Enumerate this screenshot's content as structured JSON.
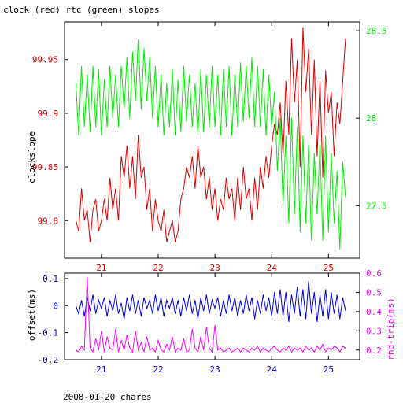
{
  "title": "clock (red) rtc (green) slopes",
  "footer": "2008-01-20 chares",
  "colors": {
    "clock": "#dd0000",
    "rtc": "#00ee00",
    "offset": "#0000dd",
    "rndtrip": "#ff00ff",
    "axis": "#000000"
  },
  "chart_data": [
    {
      "type": "line",
      "title": "clock (red) rtc (green) slopes",
      "ylabel": "clockslope",
      "y2label": "",
      "xlim": [
        20.35,
        25.55
      ],
      "ylim": [
        99.765,
        99.985
      ],
      "y2lim": [
        27.2,
        28.55
      ],
      "x_ticks": [
        "21",
        "22",
        "23",
        "24",
        "25"
      ],
      "y_ticks": [
        "99.8",
        "99.85",
        "99.9",
        "99.95"
      ],
      "y2_ticks": [
        "27.5",
        "28",
        "28.5"
      ],
      "series": [
        {
          "axis": "left",
          "color": "#dd0000",
          "x": [
            20.55,
            20.6,
            20.65,
            20.7,
            20.75,
            20.8,
            20.85,
            20.9,
            20.95,
            21.0,
            21.05,
            21.1,
            21.15,
            21.2,
            21.25,
            21.3,
            21.35,
            21.4,
            21.45,
            21.5,
            21.55,
            21.6,
            21.65,
            21.7,
            21.75,
            21.8,
            21.85,
            21.9,
            21.95,
            22.0,
            22.05,
            22.1,
            22.15,
            22.2,
            22.25,
            22.3,
            22.35,
            22.4,
            22.45,
            22.5,
            22.55,
            22.6,
            22.65,
            22.7,
            22.75,
            22.8,
            22.85,
            22.9,
            22.95,
            23.0,
            23.05,
            23.1,
            23.15,
            23.2,
            23.25,
            23.3,
            23.35,
            23.4,
            23.45,
            23.5,
            23.55,
            23.6,
            23.65,
            23.7,
            23.75,
            23.8,
            23.85,
            23.9,
            23.95,
            24.0,
            24.05,
            24.1,
            24.15,
            24.2,
            24.25,
            24.3,
            24.35,
            24.4,
            24.45,
            24.5,
            24.55,
            24.6,
            24.65,
            24.7,
            24.75,
            24.8,
            24.85,
            24.9,
            24.95,
            25.0,
            25.05,
            25.1,
            25.15,
            25.2,
            25.25,
            25.3
          ],
          "y": [
            99.8,
            99.79,
            99.83,
            99.8,
            99.81,
            99.78,
            99.81,
            99.82,
            99.79,
            99.8,
            99.82,
            99.8,
            99.84,
            99.81,
            99.83,
            99.8,
            99.86,
            99.84,
            99.87,
            99.83,
            99.86,
            99.82,
            99.88,
            99.84,
            99.85,
            99.81,
            99.83,
            99.79,
            99.82,
            99.8,
            99.79,
            99.81,
            99.78,
            99.79,
            99.8,
            99.78,
            99.79,
            99.82,
            99.83,
            99.85,
            99.84,
            99.86,
            99.83,
            99.87,
            99.84,
            99.85,
            99.82,
            99.84,
            99.81,
            99.83,
            99.8,
            99.82,
            99.81,
            99.84,
            99.82,
            99.83,
            99.8,
            99.84,
            99.81,
            99.85,
            99.82,
            99.83,
            99.8,
            99.84,
            99.81,
            99.85,
            99.83,
            99.86,
            99.84,
            99.87,
            99.89,
            99.88,
            99.91,
            99.86,
            99.93,
            99.88,
            99.97,
            99.91,
            99.95,
            99.85,
            99.98,
            99.92,
            99.96,
            99.88,
            99.95,
            99.86,
            99.93,
            99.84,
            99.94,
            99.9,
            99.92,
            99.86,
            99.91,
            99.89,
            99.93,
            99.97
          ]
        },
        {
          "axis": "right",
          "color": "#00ee00",
          "x": [
            20.55,
            20.6,
            20.65,
            20.7,
            20.75,
            20.8,
            20.85,
            20.9,
            20.95,
            21.0,
            21.05,
            21.1,
            21.15,
            21.2,
            21.25,
            21.3,
            21.35,
            21.4,
            21.45,
            21.5,
            21.55,
            21.6,
            21.65,
            21.7,
            21.75,
            21.8,
            21.85,
            21.9,
            21.95,
            22.0,
            22.05,
            22.1,
            22.15,
            22.2,
            22.25,
            22.3,
            22.35,
            22.4,
            22.45,
            22.5,
            22.55,
            22.6,
            22.65,
            22.7,
            22.75,
            22.8,
            22.85,
            22.9,
            22.95,
            23.0,
            23.05,
            23.1,
            23.15,
            23.2,
            23.25,
            23.3,
            23.35,
            23.4,
            23.45,
            23.5,
            23.55,
            23.6,
            23.65,
            23.7,
            23.75,
            23.8,
            23.85,
            23.9,
            23.95,
            24.0,
            24.05,
            24.1,
            24.15,
            24.2,
            24.25,
            24.3,
            24.35,
            24.4,
            24.45,
            24.5,
            24.55,
            24.6,
            24.65,
            24.7,
            24.75,
            24.8,
            24.85,
            24.9,
            24.95,
            25.0,
            25.05,
            25.1,
            25.15,
            25.2,
            25.25,
            25.3
          ],
          "y": [
            28.2,
            27.9,
            28.3,
            27.95,
            28.25,
            27.92,
            28.3,
            27.95,
            28.28,
            27.9,
            28.22,
            27.95,
            28.3,
            28.0,
            28.25,
            27.95,
            28.3,
            28.05,
            28.35,
            28.0,
            28.38,
            28.1,
            28.45,
            28.05,
            28.4,
            28.1,
            28.35,
            28.0,
            28.3,
            27.95,
            28.25,
            27.9,
            28.2,
            27.95,
            28.28,
            27.9,
            28.22,
            27.92,
            28.3,
            27.98,
            28.25,
            27.95,
            28.2,
            27.9,
            28.28,
            27.92,
            28.25,
            27.95,
            28.3,
            27.95,
            28.25,
            27.9,
            28.28,
            27.95,
            28.3,
            27.9,
            28.25,
            27.95,
            28.32,
            27.98,
            28.3,
            28.0,
            28.35,
            27.95,
            28.3,
            27.95,
            28.28,
            27.9,
            28.25,
            27.95,
            28.15,
            27.7,
            28.0,
            27.5,
            27.9,
            27.4,
            28.0,
            27.45,
            27.95,
            27.35,
            27.9,
            27.4,
            27.85,
            27.3,
            27.8,
            27.45,
            27.85,
            27.3,
            27.9,
            27.35,
            27.8,
            27.4,
            27.7,
            27.25,
            27.75,
            27.55
          ]
        }
      ]
    },
    {
      "type": "line",
      "ylabel": "offset(ms)",
      "y2label": "rnd-trip(ms)",
      "xlim": [
        20.35,
        25.55
      ],
      "ylim": [
        -0.2,
        0.12
      ],
      "y2lim": [
        0.15,
        0.6
      ],
      "x_ticks": [
        "21",
        "22",
        "23",
        "24",
        "25"
      ],
      "y_ticks": [
        "-0.2",
        "-0.1",
        "0",
        "0.1"
      ],
      "y2_ticks": [
        "0.2",
        "0.3",
        "0.4",
        "0.5",
        "0.6"
      ],
      "series": [
        {
          "axis": "left",
          "color": "#0000dd",
          "x": [
            20.55,
            20.6,
            20.65,
            20.7,
            20.75,
            20.8,
            20.85,
            20.9,
            20.95,
            21.0,
            21.05,
            21.1,
            21.15,
            21.2,
            21.25,
            21.3,
            21.35,
            21.4,
            21.45,
            21.5,
            21.55,
            21.6,
            21.65,
            21.7,
            21.75,
            21.8,
            21.85,
            21.9,
            21.95,
            22.0,
            22.05,
            22.1,
            22.15,
            22.2,
            22.25,
            22.3,
            22.35,
            22.4,
            22.45,
            22.5,
            22.55,
            22.6,
            22.65,
            22.7,
            22.75,
            22.8,
            22.85,
            22.9,
            22.95,
            23.0,
            23.05,
            23.1,
            23.15,
            23.2,
            23.25,
            23.3,
            23.35,
            23.4,
            23.45,
            23.5,
            23.55,
            23.6,
            23.65,
            23.7,
            23.75,
            23.8,
            23.85,
            23.9,
            23.95,
            24.0,
            24.05,
            24.1,
            24.15,
            24.2,
            24.25,
            24.3,
            24.35,
            24.4,
            24.45,
            24.5,
            24.55,
            24.6,
            24.65,
            24.7,
            24.75,
            24.8,
            24.85,
            24.9,
            24.95,
            25.0,
            25.05,
            25.1,
            25.15,
            25.2,
            25.25,
            25.3
          ],
          "y": [
            0.0,
            -0.03,
            0.02,
            -0.04,
            0.03,
            -0.02,
            0.04,
            -0.03,
            0.02,
            -0.01,
            0.03,
            -0.04,
            0.02,
            -0.02,
            0.04,
            -0.03,
            0.01,
            -0.05,
            0.03,
            -0.02,
            0.04,
            -0.03,
            0.02,
            -0.04,
            0.03,
            -0.01,
            0.02,
            -0.03,
            0.04,
            -0.02,
            0.03,
            -0.04,
            0.02,
            -0.01,
            0.03,
            -0.03,
            0.02,
            -0.04,
            0.03,
            -0.02,
            0.04,
            -0.03,
            0.02,
            -0.05,
            0.03,
            -0.02,
            0.04,
            -0.03,
            0.02,
            -0.01,
            0.03,
            -0.04,
            0.02,
            -0.03,
            0.04,
            -0.02,
            0.03,
            -0.04,
            0.02,
            -0.03,
            0.04,
            -0.02,
            0.03,
            -0.05,
            0.02,
            -0.03,
            0.04,
            -0.02,
            0.03,
            -0.04,
            0.05,
            -0.03,
            0.06,
            -0.04,
            0.05,
            -0.06,
            0.04,
            -0.03,
            0.07,
            -0.04,
            0.06,
            -0.05,
            0.09,
            -0.03,
            0.05,
            -0.06,
            0.04,
            -0.04,
            0.06,
            -0.05,
            0.05,
            -0.03,
            0.04,
            -0.05,
            0.03,
            -0.02
          ]
        },
        {
          "axis": "right",
          "color": "#ff00ff",
          "x": [
            20.55,
            20.6,
            20.65,
            20.7,
            20.75,
            20.8,
            20.85,
            20.9,
            20.95,
            21.0,
            21.05,
            21.1,
            21.15,
            21.2,
            21.25,
            21.3,
            21.35,
            21.4,
            21.45,
            21.5,
            21.55,
            21.6,
            21.65,
            21.7,
            21.75,
            21.8,
            21.85,
            21.9,
            21.95,
            22.0,
            22.05,
            22.1,
            22.15,
            22.2,
            22.25,
            22.3,
            22.35,
            22.4,
            22.45,
            22.5,
            22.55,
            22.6,
            22.65,
            22.7,
            22.75,
            22.8,
            22.85,
            22.9,
            22.95,
            23.0,
            23.05,
            23.1,
            23.15,
            23.2,
            23.25,
            23.3,
            23.35,
            23.4,
            23.45,
            23.5,
            23.55,
            23.6,
            23.65,
            23.7,
            23.75,
            23.8,
            23.85,
            23.9,
            23.95,
            24.0,
            24.05,
            24.1,
            24.15,
            24.2,
            24.25,
            24.3,
            24.35,
            24.4,
            24.45,
            24.5,
            24.55,
            24.6,
            24.65,
            24.7,
            24.75,
            24.8,
            24.85,
            24.9,
            24.95,
            25.0,
            25.05,
            25.1,
            25.15,
            25.2,
            25.25,
            25.3
          ],
          "y": [
            0.2,
            0.19,
            0.22,
            0.2,
            0.58,
            0.21,
            0.19,
            0.26,
            0.2,
            0.3,
            0.19,
            0.27,
            0.21,
            0.2,
            0.31,
            0.19,
            0.25,
            0.2,
            0.28,
            0.21,
            0.19,
            0.3,
            0.2,
            0.24,
            0.19,
            0.27,
            0.2,
            0.21,
            0.19,
            0.25,
            0.2,
            0.19,
            0.23,
            0.2,
            0.27,
            0.19,
            0.21,
            0.2,
            0.26,
            0.19,
            0.2,
            0.31,
            0.21,
            0.19,
            0.27,
            0.2,
            0.32,
            0.21,
            0.19,
            0.33,
            0.2,
            0.21,
            0.19,
            0.2,
            0.21,
            0.19,
            0.2,
            0.21,
            0.19,
            0.21,
            0.2,
            0.19,
            0.21,
            0.2,
            0.22,
            0.19,
            0.21,
            0.2,
            0.19,
            0.21,
            0.22,
            0.2,
            0.19,
            0.21,
            0.2,
            0.22,
            0.19,
            0.21,
            0.2,
            0.21,
            0.19,
            0.22,
            0.2,
            0.21,
            0.19,
            0.22,
            0.2,
            0.23,
            0.19,
            0.21,
            0.2,
            0.22,
            0.21,
            0.19,
            0.22,
            0.21
          ]
        }
      ]
    }
  ]
}
